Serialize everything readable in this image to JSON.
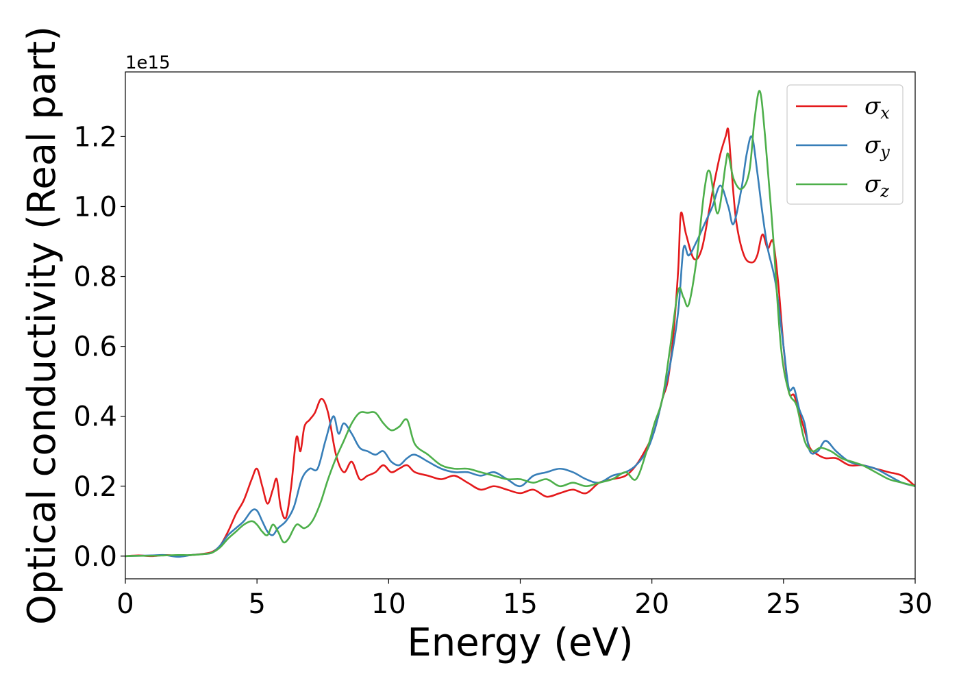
{
  "chart_data": {
    "type": "line",
    "xlabel": "Energy (eV)",
    "ylabel": "Optical conductivity (Real part)",
    "offset_text": "1e15",
    "y_scale": 1000000000000000.0,
    "xlim": [
      0,
      30
    ],
    "ylim": [
      -0.065,
      1.385
    ],
    "x_ticks": [
      0,
      5,
      10,
      15,
      20,
      25,
      30
    ],
    "x_tick_labels": [
      "0",
      "5",
      "10",
      "15",
      "20",
      "25",
      "30"
    ],
    "y_ticks": [
      0.0,
      0.2,
      0.4,
      0.6,
      0.8,
      1.0,
      1.2
    ],
    "y_tick_labels": [
      "0.0",
      "0.2",
      "0.4",
      "0.6",
      "0.8",
      "1.0",
      "1.2"
    ],
    "grid": false,
    "legend_position": "top-right",
    "series": [
      {
        "name": "σx",
        "symbol": "σ",
        "subscript": "x",
        "color": "#e41a1c",
        "x": [
          0,
          0.5,
          1,
          1.5,
          2,
          2.5,
          3,
          3.3,
          3.6,
          3.9,
          4.2,
          4.5,
          4.8,
          5,
          5.2,
          5.4,
          5.6,
          5.75,
          5.9,
          6.1,
          6.3,
          6.5,
          6.65,
          6.8,
          7.0,
          7.2,
          7.45,
          7.7,
          8.0,
          8.3,
          8.6,
          8.9,
          9.2,
          9.5,
          9.8,
          10.1,
          10.4,
          10.7,
          11.0,
          11.5,
          12.0,
          12.5,
          13.0,
          13.5,
          14.0,
          14.5,
          15.0,
          15.5,
          16.0,
          16.5,
          17.0,
          17.5,
          18.0,
          18.5,
          19.0,
          19.4,
          19.8,
          20.1,
          20.4,
          20.6,
          20.8,
          21.0,
          21.1,
          21.3,
          21.6,
          21.9,
          22.2,
          22.4,
          22.6,
          22.8,
          22.9,
          23.0,
          23.2,
          23.5,
          23.8,
          24.0,
          24.2,
          24.4,
          24.6,
          24.8,
          25.0,
          25.2,
          25.4,
          25.6,
          25.8,
          26.0,
          26.3,
          26.6,
          27.0,
          27.5,
          28.0,
          28.5,
          29.0,
          29.5,
          30.0
        ],
        "values": [
          0,
          0.002,
          0,
          0.003,
          0.001,
          0.003,
          0.007,
          0.012,
          0.03,
          0.07,
          0.12,
          0.16,
          0.22,
          0.25,
          0.2,
          0.15,
          0.19,
          0.22,
          0.14,
          0.11,
          0.2,
          0.34,
          0.3,
          0.37,
          0.39,
          0.41,
          0.45,
          0.41,
          0.29,
          0.24,
          0.27,
          0.22,
          0.23,
          0.24,
          0.26,
          0.24,
          0.25,
          0.26,
          0.24,
          0.23,
          0.22,
          0.23,
          0.21,
          0.19,
          0.2,
          0.19,
          0.18,
          0.19,
          0.17,
          0.18,
          0.19,
          0.18,
          0.21,
          0.22,
          0.23,
          0.26,
          0.31,
          0.36,
          0.45,
          0.5,
          0.62,
          0.82,
          0.98,
          0.92,
          0.85,
          0.88,
          1.0,
          1.08,
          1.15,
          1.2,
          1.22,
          1.13,
          0.96,
          0.86,
          0.84,
          0.86,
          0.92,
          0.88,
          0.9,
          0.78,
          0.6,
          0.47,
          0.46,
          0.41,
          0.36,
          0.31,
          0.29,
          0.28,
          0.28,
          0.26,
          0.26,
          0.25,
          0.24,
          0.23,
          0.2
        ]
      },
      {
        "name": "σy",
        "symbol": "σ",
        "subscript": "y",
        "color": "#377eb8",
        "x": [
          0,
          0.5,
          1,
          1.5,
          2,
          2.5,
          3,
          3.3,
          3.6,
          3.9,
          4.2,
          4.5,
          4.8,
          5.0,
          5.2,
          5.4,
          5.6,
          5.8,
          6.1,
          6.4,
          6.7,
          7.0,
          7.3,
          7.6,
          7.9,
          8.1,
          8.3,
          8.6,
          8.9,
          9.2,
          9.5,
          9.8,
          10.1,
          10.4,
          10.7,
          11.0,
          11.5,
          12.0,
          12.5,
          13.0,
          13.5,
          14.0,
          14.5,
          15.0,
          15.5,
          16.0,
          16.5,
          17.0,
          17.5,
          18.0,
          18.5,
          19.0,
          19.4,
          19.8,
          20.1,
          20.4,
          20.7,
          21.0,
          21.2,
          21.4,
          21.7,
          22.0,
          22.3,
          22.6,
          22.9,
          23.1,
          23.4,
          23.6,
          23.8,
          24.0,
          24.2,
          24.4,
          24.7,
          25.0,
          25.2,
          25.4,
          25.6,
          25.8,
          26.0,
          26.3,
          26.6,
          27.0,
          27.5,
          28.0,
          28.5,
          29.0,
          29.5,
          30.0
        ],
        "values": [
          0,
          0.001,
          0.002,
          0.003,
          -0.002,
          0.003,
          0.006,
          0.01,
          0.03,
          0.06,
          0.08,
          0.1,
          0.13,
          0.13,
          0.1,
          0.07,
          0.06,
          0.08,
          0.1,
          0.14,
          0.22,
          0.25,
          0.25,
          0.33,
          0.4,
          0.35,
          0.38,
          0.35,
          0.31,
          0.3,
          0.29,
          0.3,
          0.27,
          0.26,
          0.28,
          0.29,
          0.27,
          0.25,
          0.24,
          0.24,
          0.23,
          0.24,
          0.22,
          0.2,
          0.23,
          0.24,
          0.25,
          0.24,
          0.22,
          0.21,
          0.23,
          0.24,
          0.26,
          0.3,
          0.36,
          0.45,
          0.55,
          0.7,
          0.88,
          0.86,
          0.9,
          0.95,
          1.0,
          1.06,
          1.0,
          0.95,
          1.05,
          1.15,
          1.2,
          1.1,
          0.98,
          0.88,
          0.78,
          0.6,
          0.48,
          0.48,
          0.42,
          0.38,
          0.3,
          0.3,
          0.33,
          0.3,
          0.27,
          0.26,
          0.25,
          0.23,
          0.21,
          0.2
        ]
      },
      {
        "name": "σz",
        "symbol": "σ",
        "subscript": "z",
        "color": "#4daf4a",
        "x": [
          0,
          0.5,
          1,
          1.5,
          2,
          2.5,
          3,
          3.3,
          3.6,
          3.9,
          4.2,
          4.5,
          4.8,
          5.0,
          5.2,
          5.4,
          5.6,
          5.8,
          6.0,
          6.2,
          6.5,
          6.8,
          7.1,
          7.4,
          7.7,
          8.0,
          8.3,
          8.6,
          8.9,
          9.2,
          9.5,
          9.8,
          10.1,
          10.4,
          10.7,
          11.0,
          11.5,
          12.0,
          12.5,
          13.0,
          13.5,
          14.0,
          14.5,
          15.0,
          15.5,
          16.0,
          16.5,
          17.0,
          17.5,
          18.0,
          18.5,
          19.0,
          19.4,
          19.8,
          20.1,
          20.4,
          20.7,
          21.0,
          21.2,
          21.4,
          21.7,
          22.0,
          22.2,
          22.5,
          22.8,
          22.9,
          23.1,
          23.4,
          23.7,
          23.9,
          24.1,
          24.3,
          24.6,
          24.9,
          25.2,
          25.5,
          25.8,
          26.1,
          26.4,
          26.8,
          27.2,
          27.6,
          28.0,
          28.5,
          29.0,
          29.5,
          30.0
        ],
        "values": [
          0,
          0.001,
          0.001,
          0.002,
          0.003,
          0.003,
          0.006,
          0.01,
          0.025,
          0.05,
          0.07,
          0.09,
          0.1,
          0.09,
          0.07,
          0.06,
          0.09,
          0.07,
          0.04,
          0.05,
          0.09,
          0.08,
          0.1,
          0.15,
          0.22,
          0.28,
          0.33,
          0.38,
          0.41,
          0.41,
          0.41,
          0.38,
          0.36,
          0.37,
          0.39,
          0.32,
          0.29,
          0.26,
          0.25,
          0.25,
          0.24,
          0.23,
          0.22,
          0.22,
          0.21,
          0.22,
          0.2,
          0.21,
          0.2,
          0.21,
          0.22,
          0.24,
          0.22,
          0.3,
          0.38,
          0.45,
          0.6,
          0.76,
          0.74,
          0.72,
          0.85,
          1.05,
          1.1,
          0.98,
          1.12,
          1.15,
          1.08,
          1.05,
          1.1,
          1.25,
          1.33,
          1.2,
          0.92,
          0.6,
          0.47,
          0.43,
          0.33,
          0.3,
          0.31,
          0.3,
          0.28,
          0.27,
          0.26,
          0.24,
          0.22,
          0.21,
          0.2
        ]
      }
    ]
  }
}
